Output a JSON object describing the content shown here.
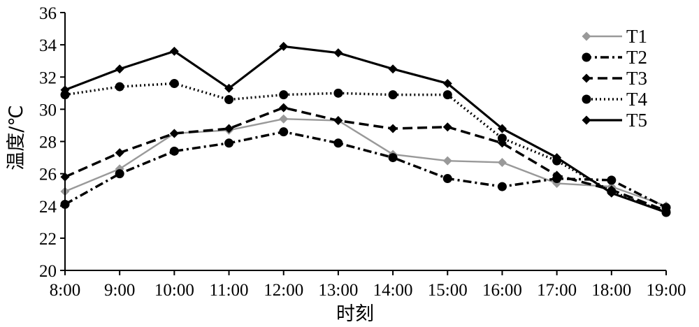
{
  "chart_data": {
    "type": "line",
    "xlabel": "时刻",
    "ylabel": "温度/℃",
    "ylim": [
      20,
      36
    ],
    "yticks": [
      20,
      22,
      24,
      26,
      28,
      30,
      32,
      34,
      36
    ],
    "categories": [
      "8:00",
      "9:00",
      "10:00",
      "11:00",
      "12:00",
      "13:00",
      "14:00",
      "15:00",
      "16:00",
      "17:00",
      "18:00",
      "19:00"
    ],
    "grid": false,
    "legend_position": "top-right",
    "series": [
      {
        "name": "T1",
        "color": "#999999",
        "marker": "diamond",
        "dash": "solid",
        "values": [
          24.9,
          26.3,
          28.5,
          28.7,
          29.4,
          29.3,
          27.2,
          26.8,
          26.7,
          25.4,
          25.2,
          24.0
        ]
      },
      {
        "name": "T2",
        "color": "#000000",
        "marker": "circle",
        "dash": "dashdot",
        "values": [
          24.1,
          26.0,
          27.4,
          27.9,
          28.6,
          27.9,
          27.0,
          25.7,
          25.2,
          25.7,
          25.6,
          23.9
        ]
      },
      {
        "name": "T3",
        "color": "#000000",
        "marker": "diamond",
        "dash": "dashed",
        "values": [
          25.8,
          27.3,
          28.5,
          28.8,
          30.1,
          29.3,
          28.8,
          28.9,
          27.9,
          25.9,
          25.0,
          23.7
        ]
      },
      {
        "name": "T4",
        "color": "#000000",
        "marker": "circle",
        "dash": "dotted",
        "values": [
          30.9,
          31.4,
          31.6,
          30.6,
          30.9,
          31.0,
          30.9,
          30.9,
          28.2,
          26.8,
          24.9,
          23.6
        ]
      },
      {
        "name": "T5",
        "color": "#000000",
        "marker": "diamond",
        "dash": "solid",
        "values": [
          31.2,
          32.5,
          33.6,
          31.3,
          33.9,
          33.5,
          32.5,
          31.6,
          28.8,
          27.0,
          24.8,
          23.6
        ]
      }
    ]
  }
}
